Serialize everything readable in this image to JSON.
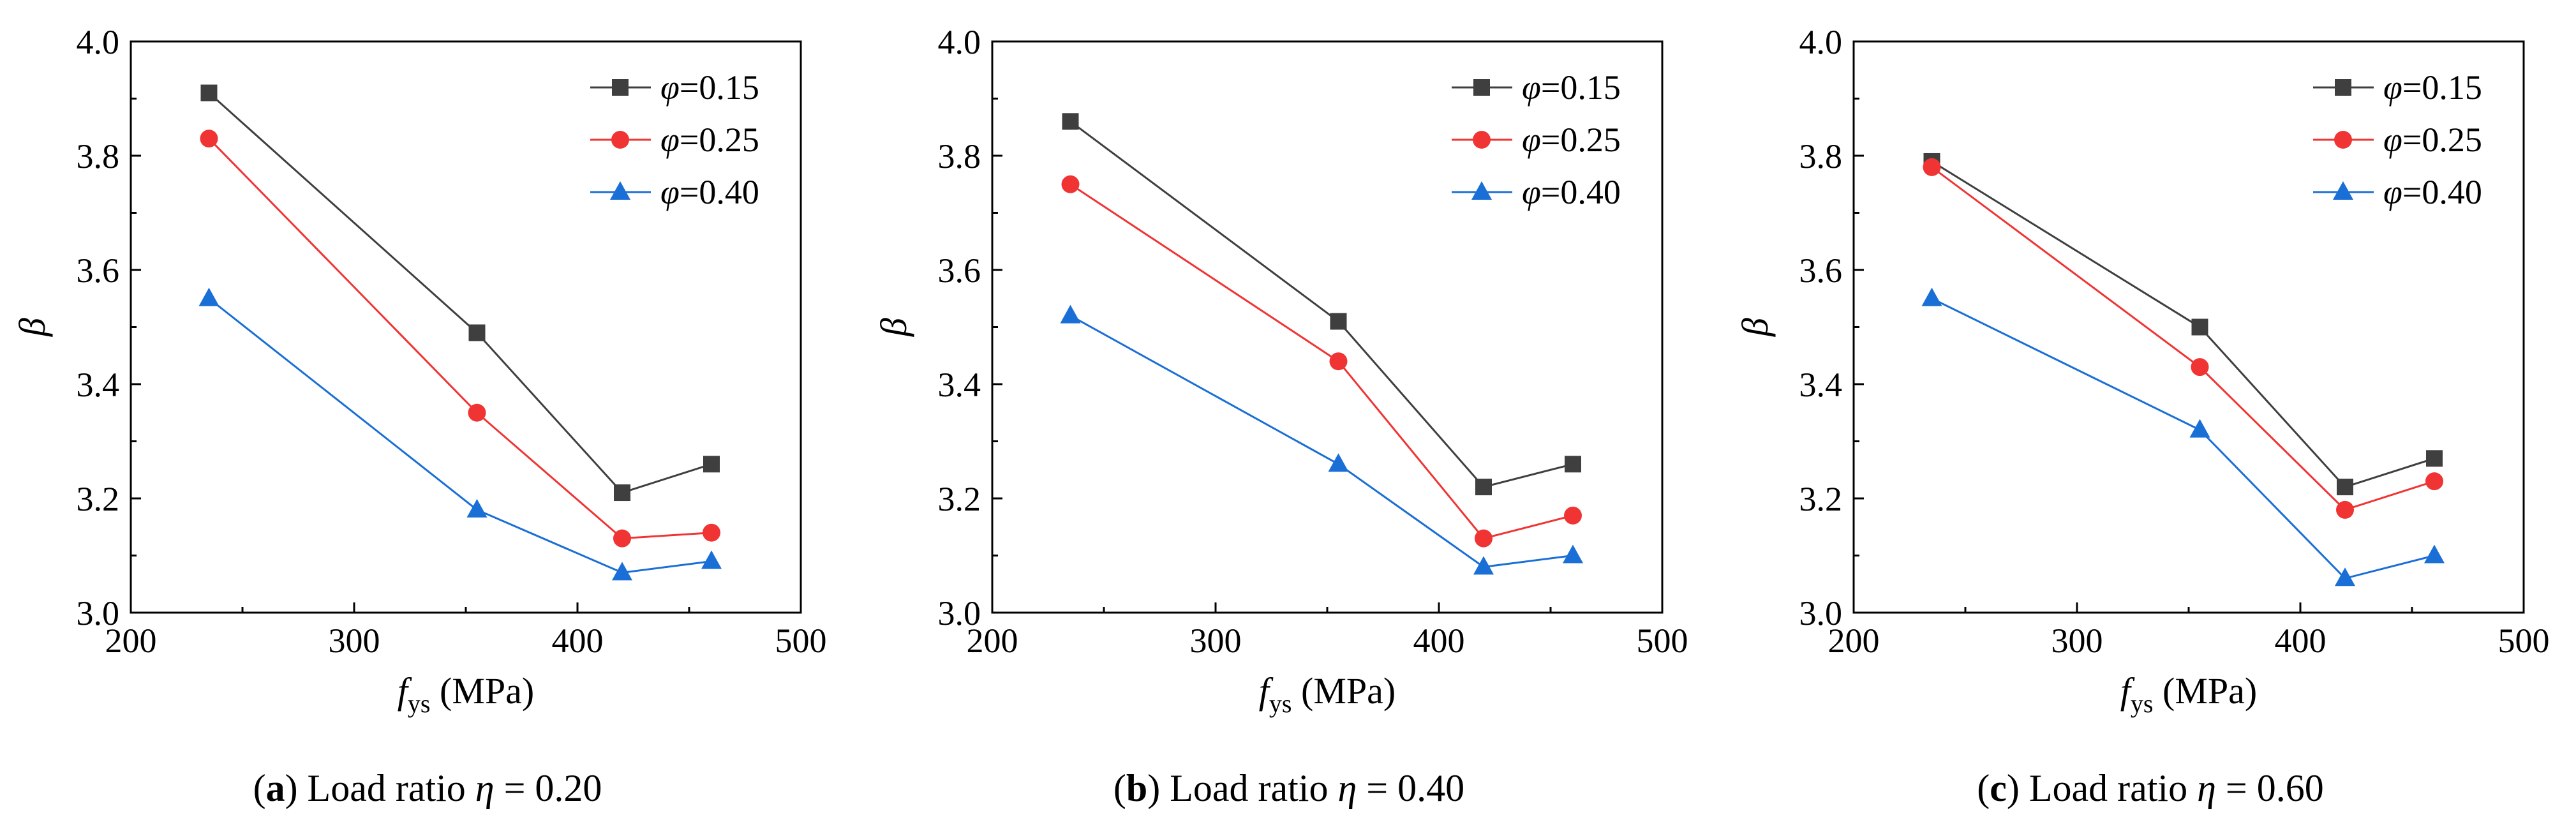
{
  "colors": {
    "series_0": "#3f3f3f",
    "series_1": "#f03434",
    "series_2": "#1a6fd6"
  },
  "markers": [
    "square",
    "circle",
    "triangle"
  ],
  "chart_data": [
    {
      "type": "line",
      "caption": {
        "letter": "a",
        "text": "Load ratio ",
        "symbol": "η",
        "value": " = 0.20"
      },
      "ylabel": "β",
      "xlabel": {
        "base": "f",
        "sub": "ys",
        "unit": " (MPa)"
      },
      "xlim": [
        200,
        500
      ],
      "ylim": [
        3.0,
        4.0
      ],
      "x_ticks": [
        "200",
        "300",
        "400",
        "500"
      ],
      "y_ticks": [
        "3.0",
        "3.2",
        "3.4",
        "3.6",
        "3.8",
        "4.0"
      ],
      "legend_position": "top-right",
      "x": [
        235,
        355,
        420,
        460
      ],
      "series": [
        {
          "name": "φ=0.15",
          "symbol": "φ",
          "label": "=0.15",
          "values": [
            3.91,
            3.49,
            3.21,
            3.26
          ]
        },
        {
          "name": "φ=0.25",
          "symbol": "φ",
          "label": "=0.25",
          "values": [
            3.83,
            3.35,
            3.13,
            3.14
          ]
        },
        {
          "name": "φ=0.40",
          "symbol": "φ",
          "label": "=0.40",
          "values": [
            3.55,
            3.18,
            3.07,
            3.09
          ]
        }
      ]
    },
    {
      "type": "line",
      "caption": {
        "letter": "b",
        "text": "Load ratio ",
        "symbol": "η",
        "value": " = 0.40"
      },
      "ylabel": "β",
      "xlabel": {
        "base": "f",
        "sub": "ys",
        "unit": " (MPa)"
      },
      "xlim": [
        200,
        500
      ],
      "ylim": [
        3.0,
        4.0
      ],
      "x_ticks": [
        "200",
        "300",
        "400",
        "500"
      ],
      "y_ticks": [
        "3.0",
        "3.2",
        "3.4",
        "3.6",
        "3.8",
        "4.0"
      ],
      "legend_position": "top-right",
      "x": [
        235,
        355,
        420,
        460
      ],
      "series": [
        {
          "name": "φ=0.15",
          "symbol": "φ",
          "label": "=0.15",
          "values": [
            3.86,
            3.51,
            3.22,
            3.26
          ]
        },
        {
          "name": "φ=0.25",
          "symbol": "φ",
          "label": "=0.25",
          "values": [
            3.75,
            3.44,
            3.13,
            3.17
          ]
        },
        {
          "name": "φ=0.40",
          "symbol": "φ",
          "label": "=0.40",
          "values": [
            3.52,
            3.26,
            3.08,
            3.1
          ]
        }
      ]
    },
    {
      "type": "line",
      "caption": {
        "letter": "c",
        "text": "Load ratio ",
        "symbol": "η",
        "value": " = 0.60"
      },
      "ylabel": "β",
      "xlabel": {
        "base": "f",
        "sub": "ys",
        "unit": " (MPa)"
      },
      "xlim": [
        200,
        500
      ],
      "ylim": [
        3.0,
        4.0
      ],
      "x_ticks": [
        "200",
        "300",
        "400",
        "500"
      ],
      "y_ticks": [
        "3.0",
        "3.2",
        "3.4",
        "3.6",
        "3.8",
        "4.0"
      ],
      "legend_position": "top-right",
      "x": [
        235,
        355,
        420,
        460
      ],
      "series": [
        {
          "name": "φ=0.15",
          "symbol": "φ",
          "label": "=0.15",
          "values": [
            3.79,
            3.5,
            3.22,
            3.27
          ]
        },
        {
          "name": "φ=0.25",
          "symbol": "φ",
          "label": "=0.25",
          "values": [
            3.78,
            3.43,
            3.18,
            3.23
          ]
        },
        {
          "name": "φ=0.40",
          "symbol": "φ",
          "label": "=0.40",
          "values": [
            3.55,
            3.32,
            3.06,
            3.1
          ]
        }
      ]
    }
  ]
}
